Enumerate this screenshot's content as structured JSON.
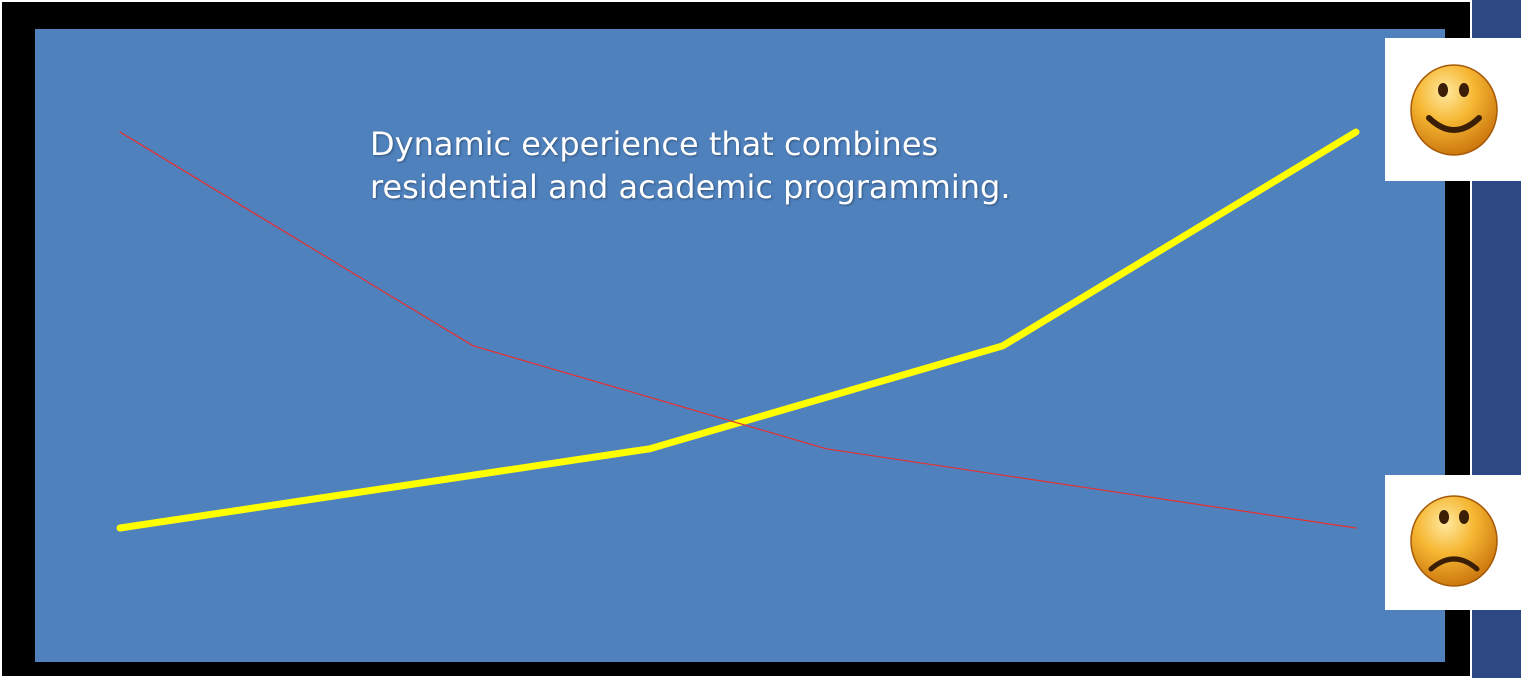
{
  "slide": {
    "text_line_1": "Dynamic experience that combines",
    "text_line_2": "residential and academic programming."
  },
  "colors": {
    "background": "#2e4886",
    "panel": "#4f81bd",
    "yellow_line": "#ffff00",
    "red_line": "#e53030"
  },
  "icons": {
    "top": "happy-face-icon",
    "bottom": "sad-face-icon"
  },
  "chart_data": {
    "type": "line",
    "x": [
      0,
      1,
      2,
      3,
      4,
      5,
      6
    ],
    "ylim": [
      0,
      1
    ],
    "grid": false,
    "legend": "none",
    "series": [
      {
        "color": "#ffff00",
        "points": [
          [
            0,
            0
          ],
          [
            3,
            0.2
          ],
          [
            5,
            0.46
          ],
          [
            7,
            1
          ]
        ]
      },
      {
        "color": "#e53030",
        "points": [
          [
            0,
            1
          ],
          [
            2,
            0.46
          ],
          [
            4,
            0.2
          ],
          [
            7,
            0
          ]
        ]
      }
    ]
  }
}
